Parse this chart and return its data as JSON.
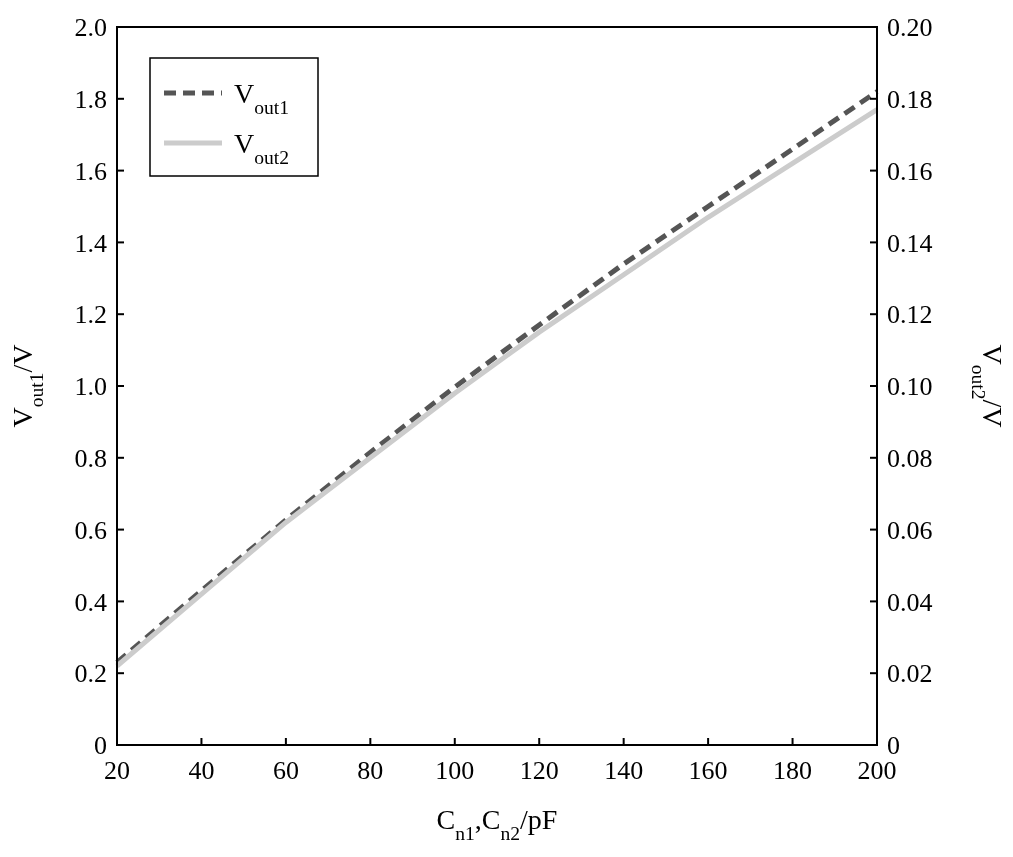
{
  "chart_data": {
    "type": "line",
    "xlabel": "C$_{n1}$,C$_{n2}$/pF",
    "ylabel": "V$_{out1}$/V",
    "y2label": "V$_{out2}$/V",
    "x": [
      20,
      40,
      60,
      80,
      100,
      120,
      140,
      160,
      180,
      200
    ],
    "series": [
      {
        "name": "V$_{out1}$",
        "color": "#555555",
        "line_style": "dashed",
        "values": [
          0.23,
          0.43,
          0.627,
          0.815,
          0.997,
          1.17,
          1.34,
          1.5,
          1.66,
          1.82
        ]
      },
      {
        "name": "V$_{out2}$",
        "color": "#cccccc",
        "line_style": "solid",
        "axis": "y2",
        "values": [
          0.022,
          0.042,
          0.062,
          0.08,
          0.098,
          0.115,
          0.131,
          0.147,
          0.162,
          0.177
        ]
      }
    ],
    "xlim": [
      20,
      200
    ],
    "xticks": [
      20,
      40,
      60,
      80,
      100,
      120,
      140,
      160,
      180,
      200
    ],
    "ylim": [
      0,
      2
    ],
    "yticks": [
      0,
      0.2,
      0.4,
      0.6,
      0.8,
      {
        "value": 1,
        "label": "1.0"
      },
      1.2,
      1.4,
      1.6,
      1.8,
      {
        "value": 2,
        "label": "2.0"
      }
    ],
    "y2lim": [
      0,
      0.2
    ],
    "y2ticks": [
      0,
      0.02,
      0.04,
      0.06,
      0.08,
      {
        "value": 0.1,
        "label": "0.10"
      },
      0.12,
      0.14,
      0.16,
      0.18,
      {
        "value": 0.2,
        "label": "0.20"
      }
    ],
    "grid": false,
    "legend": "top left"
  }
}
